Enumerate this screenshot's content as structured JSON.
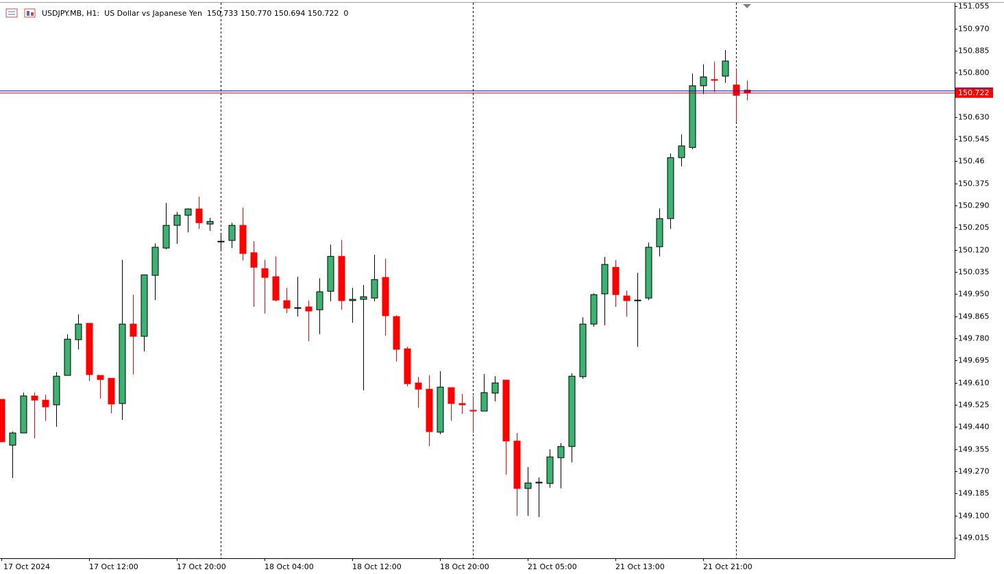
{
  "chart_data": {
    "type": "candlestick",
    "header": {
      "symbol": "USDJPY.MB, H1:",
      "description": "US Dollar vs Japanese Yen",
      "values": [
        "150.733",
        "150.770",
        "150.694",
        "150.722",
        "0"
      ]
    },
    "categories": [
      "17 Oct 2024",
      null,
      null,
      null,
      null,
      null,
      null,
      null,
      "17 Oct 12:00",
      null,
      null,
      null,
      null,
      null,
      null,
      null,
      "17 Oct 20:00",
      null,
      null,
      null,
      null,
      null,
      null,
      null,
      "18 Oct 04:00",
      null,
      null,
      null,
      null,
      null,
      null,
      null,
      "18 Oct 12:00",
      null,
      null,
      null,
      null,
      null,
      null,
      null,
      "18 Oct 20:00",
      null,
      null,
      null,
      null,
      null,
      null,
      null,
      "21 Oct 05:00",
      null,
      null,
      null,
      null,
      null,
      null,
      null,
      "21 Oct 13:00",
      null,
      null,
      null,
      null,
      null,
      null,
      null,
      "21 Oct 21:00",
      null,
      null,
      null,
      null
    ],
    "open": [
      149.546,
      149.37,
      149.417,
      149.559,
      149.543,
      149.525,
      149.638,
      149.775,
      149.838,
      149.638,
      149.627,
      149.53,
      149.835,
      149.788,
      150.022,
      150.127,
      150.214,
      150.253,
      150.277,
      150.219,
      150.151,
      150.156,
      150.214,
      150.109,
      150.048,
      150.017,
      149.925,
      149.896,
      149.901,
      149.89,
      149.961,
      150.095,
      149.925,
      149.93,
      149.935,
      150.014,
      149.864,
      149.74,
      149.609,
      149.585,
      149.42,
      149.591,
      149.53,
      149.504,
      149.501,
      149.57,
      149.62,
      149.386,
      149.204,
      149.225,
      149.223,
      149.322,
      149.365,
      149.633,
      149.835,
      149.951,
      150.053,
      149.943,
      149.925,
      149.935,
      150.132,
      150.24,
      150.474,
      150.513,
      150.75,
      150.774,
      150.787,
      150.753,
      150.733
    ],
    "high": [
      149.546,
      149.422,
      149.572,
      149.572,
      149.564,
      149.651,
      149.796,
      149.872,
      149.838,
      149.638,
      149.627,
      150.082,
      149.948,
      150.024,
      150.145,
      150.3,
      150.266,
      150.279,
      150.324,
      150.243,
      150.185,
      150.224,
      150.282,
      150.153,
      150.082,
      150.095,
      149.974,
      150.017,
      149.925,
      150.011,
      150.14,
      150.158,
      149.974,
      149.985,
      150.101,
      150.085,
      149.869,
      149.748,
      149.633,
      149.638,
      149.654,
      149.591,
      149.567,
      149.559,
      149.643,
      149.635,
      149.62,
      149.417,
      149.286,
      149.246,
      149.354,
      149.378,
      149.646,
      149.861,
      149.953,
      150.093,
      150.08,
      149.964,
      150.032,
      150.148,
      150.279,
      150.49,
      150.563,
      150.797,
      150.832,
      150.842,
      150.887,
      150.813,
      150.77
    ],
    "low": [
      149.383,
      149.244,
      149.417,
      149.396,
      149.464,
      149.441,
      149.638,
      149.738,
      149.617,
      149.549,
      149.493,
      149.467,
      149.641,
      149.73,
      149.927,
      150.122,
      150.143,
      150.187,
      150.201,
      150.193,
      150.116,
      150.127,
      150.08,
      149.901,
      149.875,
      149.922,
      149.877,
      149.864,
      149.769,
      149.796,
      149.922,
      149.89,
      149.84,
      149.58,
      149.922,
      149.79,
      149.691,
      149.596,
      149.514,
      149.367,
      149.412,
      149.464,
      149.491,
      149.417,
      149.501,
      149.538,
      149.257,
      149.099,
      149.099,
      149.094,
      149.207,
      149.204,
      149.304,
      149.625,
      149.825,
      149.83,
      149.901,
      149.864,
      149.748,
      149.927,
      150.095,
      150.201,
      150.44,
      150.506,
      150.718,
      150.726,
      150.761,
      150.611,
      150.694
    ],
    "close": [
      149.383,
      149.417,
      149.559,
      149.543,
      149.517,
      149.635,
      149.777,
      149.835,
      149.641,
      149.622,
      149.528,
      149.835,
      149.788,
      150.024,
      150.13,
      150.214,
      150.253,
      150.277,
      150.224,
      150.229,
      150.153,
      150.214,
      150.106,
      150.053,
      150.014,
      149.927,
      149.896,
      149.898,
      149.885,
      149.959,
      150.095,
      149.925,
      149.93,
      149.94,
      150.006,
      149.867,
      149.738,
      149.606,
      149.585,
      149.422,
      149.593,
      149.53,
      149.525,
      149.501,
      149.572,
      149.609,
      149.386,
      149.204,
      149.225,
      149.228,
      149.325,
      149.365,
      149.635,
      149.835,
      149.948,
      150.064,
      149.948,
      149.925,
      149.927,
      150.13,
      150.24,
      150.474,
      150.519,
      150.75,
      150.784,
      150.771,
      150.845,
      150.713,
      150.722
    ],
    "up_color": "#3cb371",
    "down_color": "#ff0000",
    "ask": 150.73,
    "ask_color": "#0000cc",
    "bid_color": "#cc0000",
    "ylim": [
      148.936,
      151.066
    ],
    "yticks": [
      151.055,
      {
        "value": 150.97,
        "label": "150.970"
      },
      150.885,
      {
        "value": 150.8,
        "label": "150.800"
      },
      {
        "value": 150.63,
        "label": "150.630"
      },
      150.545,
      150.46,
      150.375,
      {
        "value": 150.29,
        "label": "150.290"
      },
      150.205,
      {
        "value": 150.12,
        "label": "150.120"
      },
      150.035,
      {
        "value": 149.95,
        "label": "149.950"
      },
      149.865,
      {
        "value": 149.78,
        "label": "149.780"
      },
      149.695,
      {
        "value": 149.61,
        "label": "149.610"
      },
      149.525,
      {
        "value": 149.44,
        "label": "149.440"
      },
      149.355,
      {
        "value": 149.27,
        "label": "149.270"
      },
      149.185,
      {
        "value": 149.1,
        "label": "149.100"
      },
      149.015
    ]
  }
}
